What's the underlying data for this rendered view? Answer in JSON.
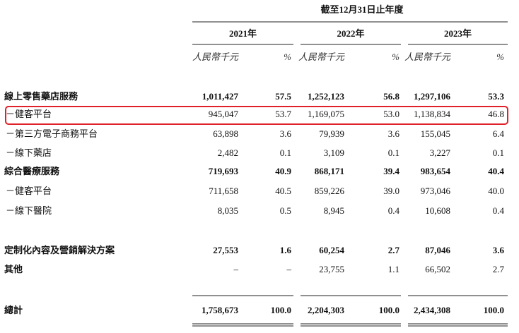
{
  "header": {
    "period": "截至12月31日止年度",
    "years": [
      "2021年",
      "2022年",
      "2023年"
    ],
    "amount_unit": "人民幣千元",
    "percent": "%"
  },
  "table": {
    "rows": [
      [
        "線上零售藥店服務",
        "1,011,427",
        "57.5",
        "1,252,123",
        "56.8",
        "1,297,106",
        "53.3"
      ],
      [
        "－健客平台",
        "945,047",
        "53.7",
        "1,169,075",
        "53.0",
        "1,138,834",
        "46.8"
      ],
      [
        "－第三方電子商務平台",
        "63,898",
        "3.6",
        "79,939",
        "3.6",
        "155,045",
        "6.4"
      ],
      [
        "－線下藥店",
        "2,482",
        "0.1",
        "3,109",
        "0.1",
        "3,227",
        "0.1"
      ],
      [
        "綜合醫療服務",
        "719,693",
        "40.9",
        "868,171",
        "39.4",
        "983,654",
        "40.4"
      ],
      [
        "－健客平台",
        "711,658",
        "40.5",
        "859,226",
        "39.0",
        "973,046",
        "40.0"
      ],
      [
        "－線下醫院",
        "8,035",
        "0.5",
        "8,945",
        "0.4",
        "10,608",
        "0.4"
      ],
      [
        "定制化內容及營銷解決方案",
        "27,553",
        "1.6",
        "60,254",
        "2.7",
        "87,046",
        "3.6"
      ],
      [
        "其他",
        "–",
        "–",
        "23,755",
        "1.1",
        "66,502",
        "2.7"
      ],
      [
        "總計",
        "1,758,673",
        "100.0",
        "2,204,303",
        "100.0",
        "2,434,308",
        "100.0"
      ]
    ]
  }
}
